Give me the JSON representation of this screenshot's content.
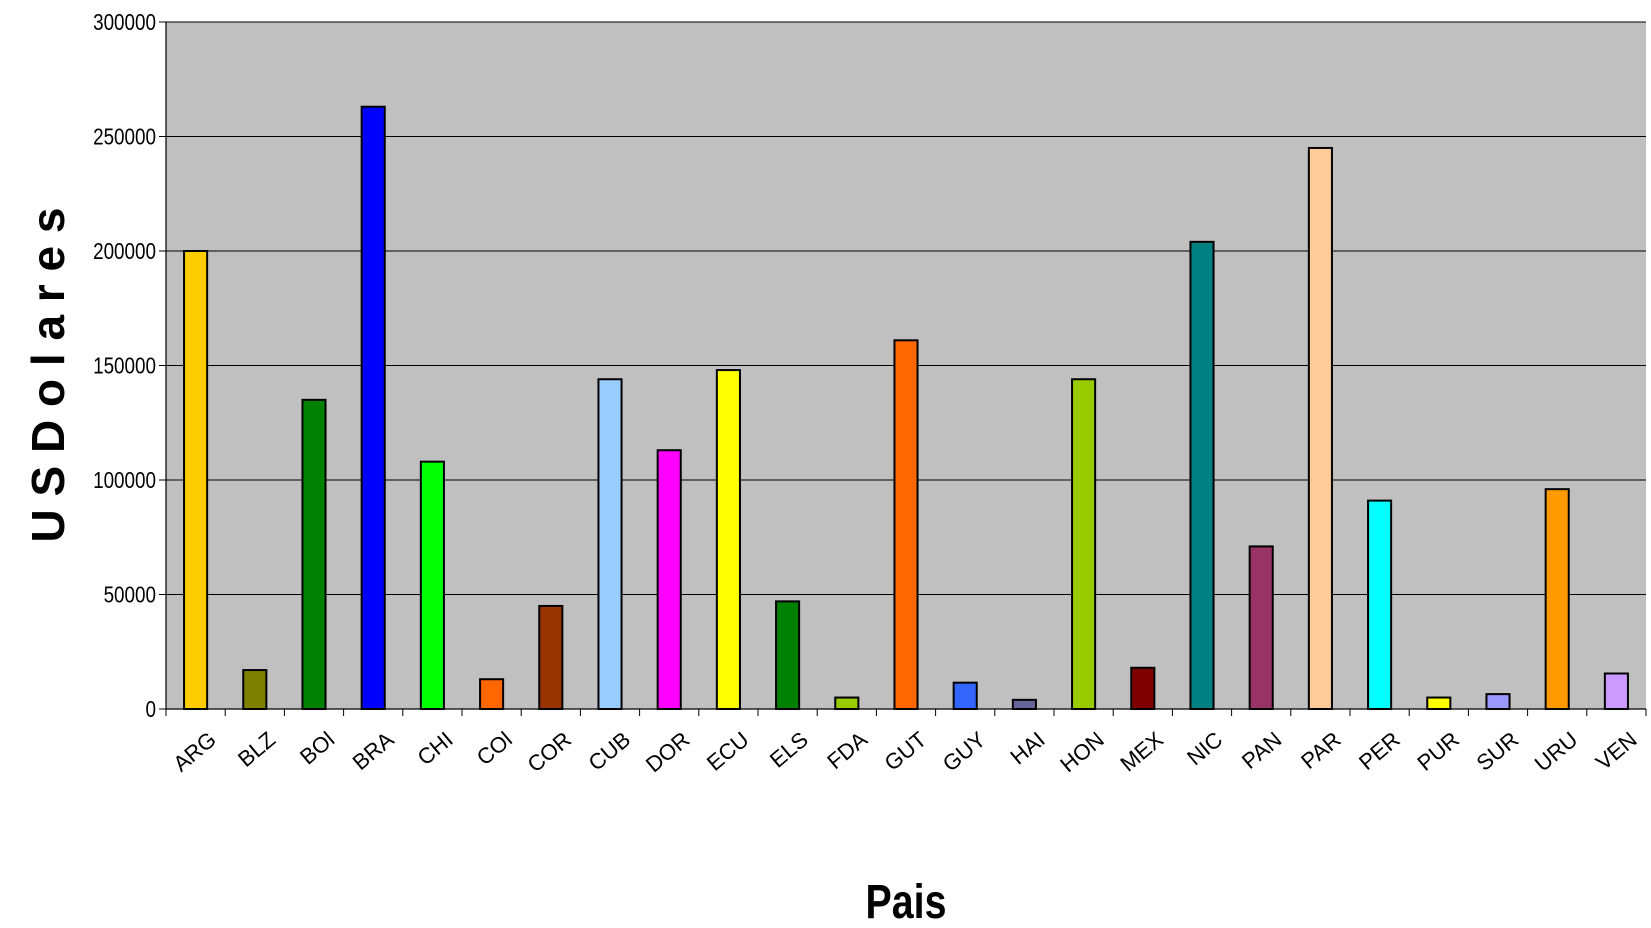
{
  "chart_data": {
    "type": "bar",
    "title": "",
    "xlabel": "Pais",
    "ylabel": "U S  D o l a r e s",
    "ylim": [
      0,
      300000
    ],
    "yticks": [
      0,
      50000,
      100000,
      150000,
      200000,
      250000,
      300000
    ],
    "grid": true,
    "legend": "none",
    "plot_background": "#c0c0c0",
    "categories": [
      "ARG",
      "BLZ",
      "BOl",
      "BRA",
      "CHI",
      "COl",
      "COR",
      "CUB",
      "DOR",
      "ECU",
      "ELS",
      "FDA",
      "GUT",
      "GUY",
      "HAI",
      "HON",
      "MEX",
      "NIC",
      "PAN",
      "PAR",
      "PER",
      "PUR",
      "SUR",
      "URU",
      "VEN"
    ],
    "values": [
      200000,
      17000,
      135000,
      263000,
      108000,
      13000,
      45000,
      144000,
      113000,
      148000,
      47000,
      5000,
      161000,
      11500,
      4000,
      144000,
      18000,
      204000,
      71000,
      245000,
      91000,
      5000,
      6500,
      96000,
      15500
    ],
    "colors": [
      "#ffcc00",
      "#808000",
      "#008000",
      "#0000ff",
      "#00ff00",
      "#ff6600",
      "#993300",
      "#99ccff",
      "#ff00ff",
      "#ffff00",
      "#008000",
      "#99cc00",
      "#ff6600",
      "#3366ff",
      "#666699",
      "#99cc00",
      "#800000",
      "#008080",
      "#993366",
      "#ffcc99",
      "#00ffff",
      "#ffff00",
      "#9999ff",
      "#ff9900",
      "#cc99ff"
    ]
  }
}
